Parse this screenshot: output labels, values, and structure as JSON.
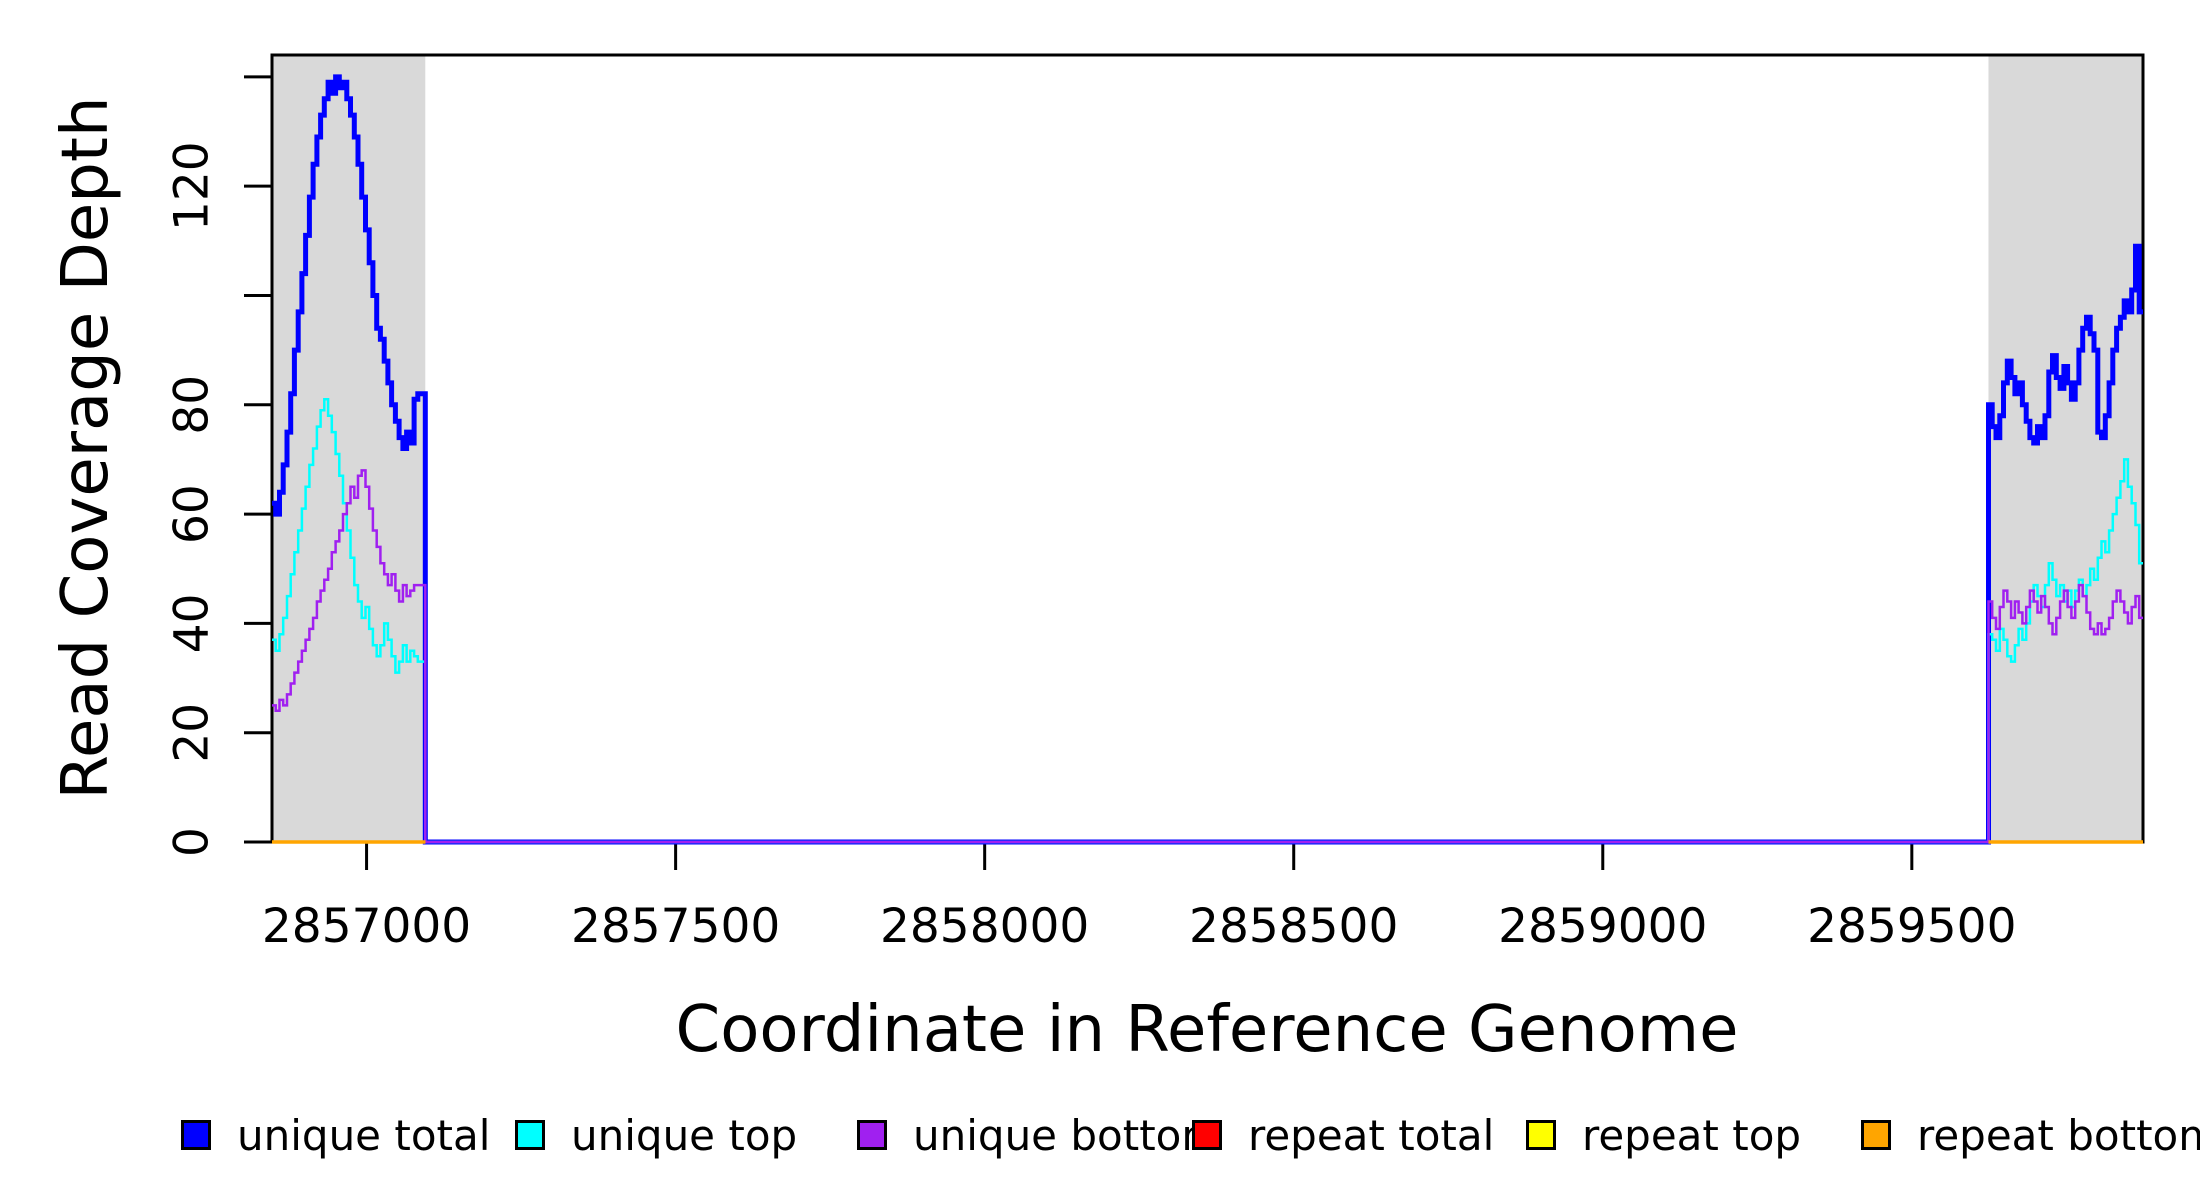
{
  "chart_data": {
    "type": "line",
    "subtype": "step-coverage",
    "title": "",
    "xlabel": "Coordinate in Reference Genome",
    "ylabel": "Read Coverage Depth",
    "xlim": [
      2856847,
      2859874
    ],
    "ylim": [
      0,
      144
    ],
    "grid": false,
    "legend_position": "bottom",
    "x_ticks": [
      2857000,
      2857500,
      2858000,
      2858500,
      2859000,
      2859500
    ],
    "x_tick_labels": [
      "2857000",
      "2857500",
      "2858000",
      "2858500",
      "2859000",
      "2859500"
    ],
    "y_ticks": [
      0,
      20,
      40,
      60,
      80,
      100,
      120,
      140
    ],
    "y_tick_labels": [
      "0",
      "20",
      "40",
      "60",
      "80",
      "",
      "120",
      ""
    ],
    "shaded_regions": [
      {
        "x0": 2856847,
        "x1": 2857095,
        "color": "#D9D9D9"
      },
      {
        "x0": 2859624,
        "x1": 2859874,
        "color": "#D9D9D9"
      }
    ],
    "series": [
      {
        "name": "unique total",
        "color": "#0000FF",
        "width": 5,
        "kind": "unique",
        "left": {
          "x0": 2856847,
          "x1": 2857095,
          "values": [
            62,
            60,
            64,
            69,
            75,
            82,
            90,
            97,
            104,
            111,
            118,
            124,
            129,
            133,
            136,
            139,
            137,
            140,
            138,
            139,
            136,
            133,
            129,
            124,
            118,
            112,
            106,
            100,
            94,
            92,
            88,
            84,
            80,
            77,
            74,
            72,
            75,
            73,
            81,
            82,
            82
          ]
        },
        "right": {
          "x0": 2859624,
          "x1": 2859874,
          "values": [
            80,
            76,
            74,
            78,
            84,
            88,
            85,
            82,
            84,
            80,
            77,
            74,
            73,
            76,
            74,
            78,
            86,
            89,
            85,
            83,
            87,
            84,
            81,
            84,
            90,
            94,
            96,
            93,
            90,
            75,
            74,
            78,
            84,
            90,
            94,
            96,
            99,
            97,
            101,
            109,
            97
          ]
        }
      },
      {
        "name": "unique top",
        "color": "#00FFFF",
        "width": 2.5,
        "kind": "unique",
        "left": {
          "x0": 2856847,
          "x1": 2857095,
          "values": [
            37,
            35,
            38,
            41,
            45,
            49,
            53,
            57,
            61,
            65,
            69,
            72,
            76,
            79,
            81,
            78,
            75,
            71,
            67,
            62,
            57,
            52,
            47,
            44,
            41,
            43,
            39,
            36,
            34,
            36,
            40,
            37,
            34,
            31,
            33,
            36,
            33,
            35,
            34,
            33,
            33
          ]
        },
        "right": {
          "x0": 2859624,
          "x1": 2859874,
          "values": [
            38,
            37,
            35,
            39,
            37,
            34,
            33,
            36,
            39,
            37,
            40,
            44,
            47,
            45,
            43,
            47,
            51,
            48,
            45,
            47,
            44,
            46,
            43,
            46,
            48,
            45,
            47,
            50,
            48,
            52,
            55,
            53,
            57,
            60,
            63,
            66,
            70,
            65,
            62,
            58,
            51
          ]
        }
      },
      {
        "name": "unique bottom",
        "color": "#A020F0",
        "width": 2.5,
        "kind": "unique",
        "left": {
          "x0": 2856847,
          "x1": 2857095,
          "values": [
            25,
            24,
            26,
            25,
            27,
            29,
            31,
            33,
            35,
            37,
            39,
            41,
            44,
            46,
            48,
            50,
            53,
            55,
            57,
            60,
            62,
            65,
            63,
            67,
            68,
            65,
            61,
            57,
            54,
            51,
            49,
            47,
            49,
            46,
            44,
            47,
            45,
            46,
            47,
            47,
            47
          ]
        },
        "right": {
          "x0": 2859624,
          "x1": 2859874,
          "values": [
            44,
            41,
            39,
            43,
            46,
            44,
            41,
            44,
            42,
            40,
            43,
            46,
            44,
            42,
            45,
            43,
            40,
            38,
            41,
            44,
            46,
            43,
            41,
            44,
            47,
            45,
            42,
            39,
            38,
            40,
            38,
            39,
            41,
            44,
            46,
            44,
            42,
            40,
            43,
            45,
            41
          ]
        }
      },
      {
        "name": "repeat total",
        "color": "#FF0000",
        "width": 3,
        "kind": "repeat",
        "value": 0
      },
      {
        "name": "repeat top",
        "color": "#FFFF00",
        "width": 3,
        "kind": "repeat",
        "value": 0
      },
      {
        "name": "repeat bottom",
        "color": "#FFA500",
        "width": 3.5,
        "kind": "repeat",
        "value": 0
      }
    ],
    "legend": [
      {
        "label": "unique total",
        "color": "#0000FF"
      },
      {
        "label": "unique top",
        "color": "#00FFFF"
      },
      {
        "label": "unique bottom",
        "color": "#A020F0"
      },
      {
        "label": "repeat total",
        "color": "#FF0000"
      },
      {
        "label": "repeat top",
        "color": "#FFFF00"
      },
      {
        "label": "repeat bottom",
        "color": "#FFA500"
      }
    ]
  }
}
